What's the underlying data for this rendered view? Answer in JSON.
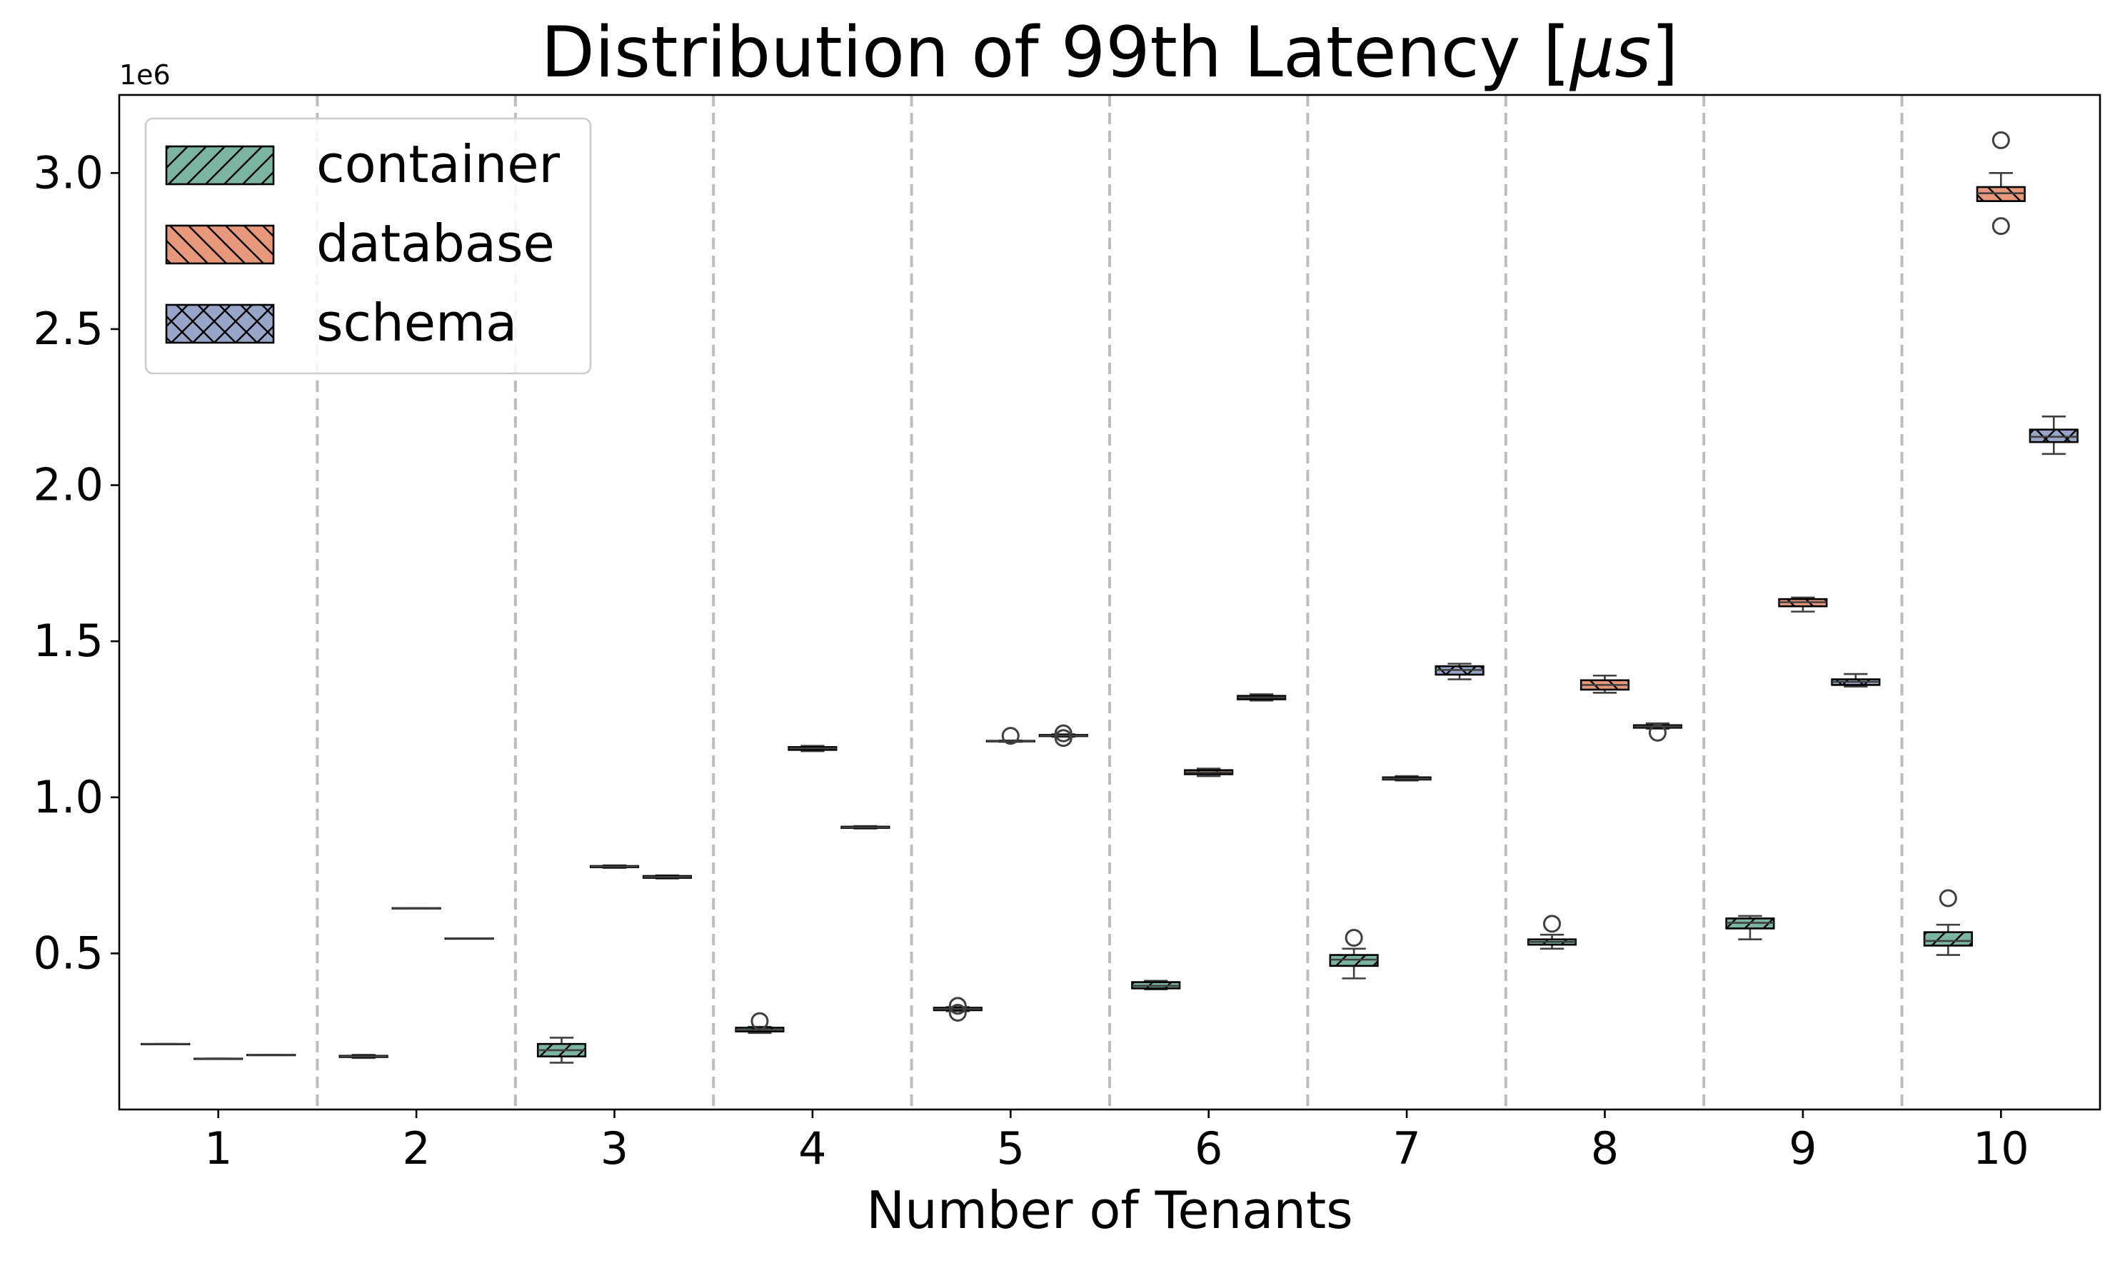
{
  "chart_data": {
    "type": "box",
    "title": "Distribution of 99th Latency [",
    "title_mu": "μs",
    "title_close": "]",
    "xlabel": "Number of Tenants",
    "ylabel": "",
    "y_offset_label": "1e6",
    "y_scale": 1000000,
    "categories": [
      "1",
      "2",
      "3",
      "4",
      "5",
      "6",
      "7",
      "8",
      "9",
      "10"
    ],
    "ylim": [
      0,
      3250000
    ],
    "yticks": [
      500000,
      1000000,
      1500000,
      2000000,
      2500000,
      3000000
    ],
    "ytick_labels": [
      "0.5",
      "1.0",
      "1.5",
      "2.0",
      "2.5",
      "3.0"
    ],
    "legend": {
      "placement": "top-left"
    },
    "series": [
      {
        "name": "container",
        "color": "#7bb49f",
        "hatch": "forward-slash",
        "boxes": [
          {
            "category": "1",
            "whislo": 210000,
            "q1": 210000,
            "med": 210000,
            "q3": 210000,
            "whishi": 210000,
            "fliers": []
          },
          {
            "category": "2",
            "whislo": 165000,
            "q1": 168000,
            "med": 170000,
            "q3": 172000,
            "whishi": 175000,
            "fliers": []
          },
          {
            "category": "3",
            "whislo": 150000,
            "q1": 170000,
            "med": 190000,
            "q3": 210000,
            "whishi": 230000,
            "fliers": []
          },
          {
            "category": "4",
            "whislo": 245000,
            "q1": 250000,
            "med": 255000,
            "q3": 262000,
            "whishi": 265000,
            "fliers": [
              283000
            ]
          },
          {
            "category": "5",
            "whislo": 315000,
            "q1": 318000,
            "med": 322000,
            "q3": 326000,
            "whishi": 328000,
            "fliers": [
              310000,
              332000
            ]
          },
          {
            "category": "6",
            "whislo": 385000,
            "q1": 388000,
            "med": 396000,
            "q3": 408000,
            "whishi": 412000,
            "fliers": []
          },
          {
            "category": "7",
            "whislo": 420000,
            "q1": 460000,
            "med": 480000,
            "q3": 495000,
            "whishi": 515000,
            "fliers": [
              550000
            ]
          },
          {
            "category": "8",
            "whislo": 515000,
            "q1": 528000,
            "med": 537000,
            "q3": 545000,
            "whishi": 560000,
            "fliers": [
              595000
            ]
          },
          {
            "category": "9",
            "whislo": 545000,
            "q1": 580000,
            "med": 598000,
            "q3": 612000,
            "whishi": 620000,
            "fliers": []
          },
          {
            "category": "10",
            "whislo": 495000,
            "q1": 525000,
            "med": 540000,
            "q3": 568000,
            "whishi": 592000,
            "fliers": [
              677000
            ]
          }
        ]
      },
      {
        "name": "database",
        "color": "#e8987a",
        "hatch": "back-slash",
        "boxes": [
          {
            "category": "1",
            "whislo": 163000,
            "q1": 163000,
            "med": 163000,
            "q3": 163000,
            "whishi": 163000,
            "fliers": []
          },
          {
            "category": "2",
            "whislo": 645000,
            "q1": 645000,
            "med": 645000,
            "q3": 645000,
            "whishi": 645000,
            "fliers": []
          },
          {
            "category": "3",
            "whislo": 774000,
            "q1": 776000,
            "med": 778000,
            "q3": 780000,
            "whishi": 782000,
            "fliers": []
          },
          {
            "category": "4",
            "whislo": 1148000,
            "q1": 1152000,
            "med": 1157000,
            "q3": 1161000,
            "whishi": 1165000,
            "fliers": []
          },
          {
            "category": "5",
            "whislo": 1178000,
            "q1": 1179000,
            "med": 1180000,
            "q3": 1181000,
            "whishi": 1182000,
            "fliers": [
              1197000
            ]
          },
          {
            "category": "6",
            "whislo": 1068000,
            "q1": 1074000,
            "med": 1080000,
            "q3": 1087000,
            "whishi": 1092000,
            "fliers": []
          },
          {
            "category": "7",
            "whislo": 1054000,
            "q1": 1057000,
            "med": 1060000,
            "q3": 1064000,
            "whishi": 1068000,
            "fliers": []
          },
          {
            "category": "8",
            "whislo": 1335000,
            "q1": 1345000,
            "med": 1360000,
            "q3": 1375000,
            "whishi": 1390000,
            "fliers": []
          },
          {
            "category": "9",
            "whislo": 1595000,
            "q1": 1612000,
            "med": 1625000,
            "q3": 1635000,
            "whishi": 1640000,
            "fliers": []
          },
          {
            "category": "10",
            "whislo": 2910000,
            "q1": 2910000,
            "med": 2935000,
            "q3": 2955000,
            "whishi": 3000000,
            "fliers": [
              3105000,
              2830000
            ]
          }
        ]
      },
      {
        "name": "schema",
        "color": "#97a5c8",
        "hatch": "cross",
        "boxes": [
          {
            "category": "1",
            "whislo": 175000,
            "q1": 175000,
            "med": 175000,
            "q3": 175000,
            "whishi": 175000,
            "fliers": []
          },
          {
            "category": "2",
            "whislo": 548000,
            "q1": 548000,
            "med": 548000,
            "q3": 548000,
            "whishi": 548000,
            "fliers": []
          },
          {
            "category": "3",
            "whislo": 740000,
            "q1": 742000,
            "med": 745000,
            "q3": 748000,
            "whishi": 750000,
            "fliers": []
          },
          {
            "category": "4",
            "whislo": 900000,
            "q1": 902000,
            "med": 904000,
            "q3": 906000,
            "whishi": 908000,
            "fliers": []
          },
          {
            "category": "5",
            "whislo": 1194000,
            "q1": 1196000,
            "med": 1198000,
            "q3": 1200000,
            "whishi": 1202000,
            "fliers": [
              1190000,
              1205000
            ]
          },
          {
            "category": "6",
            "whislo": 1310000,
            "q1": 1314000,
            "med": 1320000,
            "q3": 1325000,
            "whishi": 1330000,
            "fliers": []
          },
          {
            "category": "7",
            "whislo": 1378000,
            "q1": 1393000,
            "med": 1408000,
            "q3": 1420000,
            "whishi": 1428000,
            "fliers": []
          },
          {
            "category": "8",
            "whislo": 1220000,
            "q1": 1223000,
            "med": 1227000,
            "q3": 1231000,
            "whishi": 1237000,
            "fliers": [
              1207000
            ]
          },
          {
            "category": "9",
            "whislo": 1355000,
            "q1": 1360000,
            "med": 1370000,
            "q3": 1378000,
            "whishi": 1395000,
            "fliers": []
          },
          {
            "category": "10",
            "whislo": 2100000,
            "q1": 2138000,
            "med": 2155000,
            "q3": 2178000,
            "whishi": 2220000,
            "fliers": []
          }
        ]
      }
    ],
    "category_separators": "dashed-gray",
    "grid": false
  }
}
